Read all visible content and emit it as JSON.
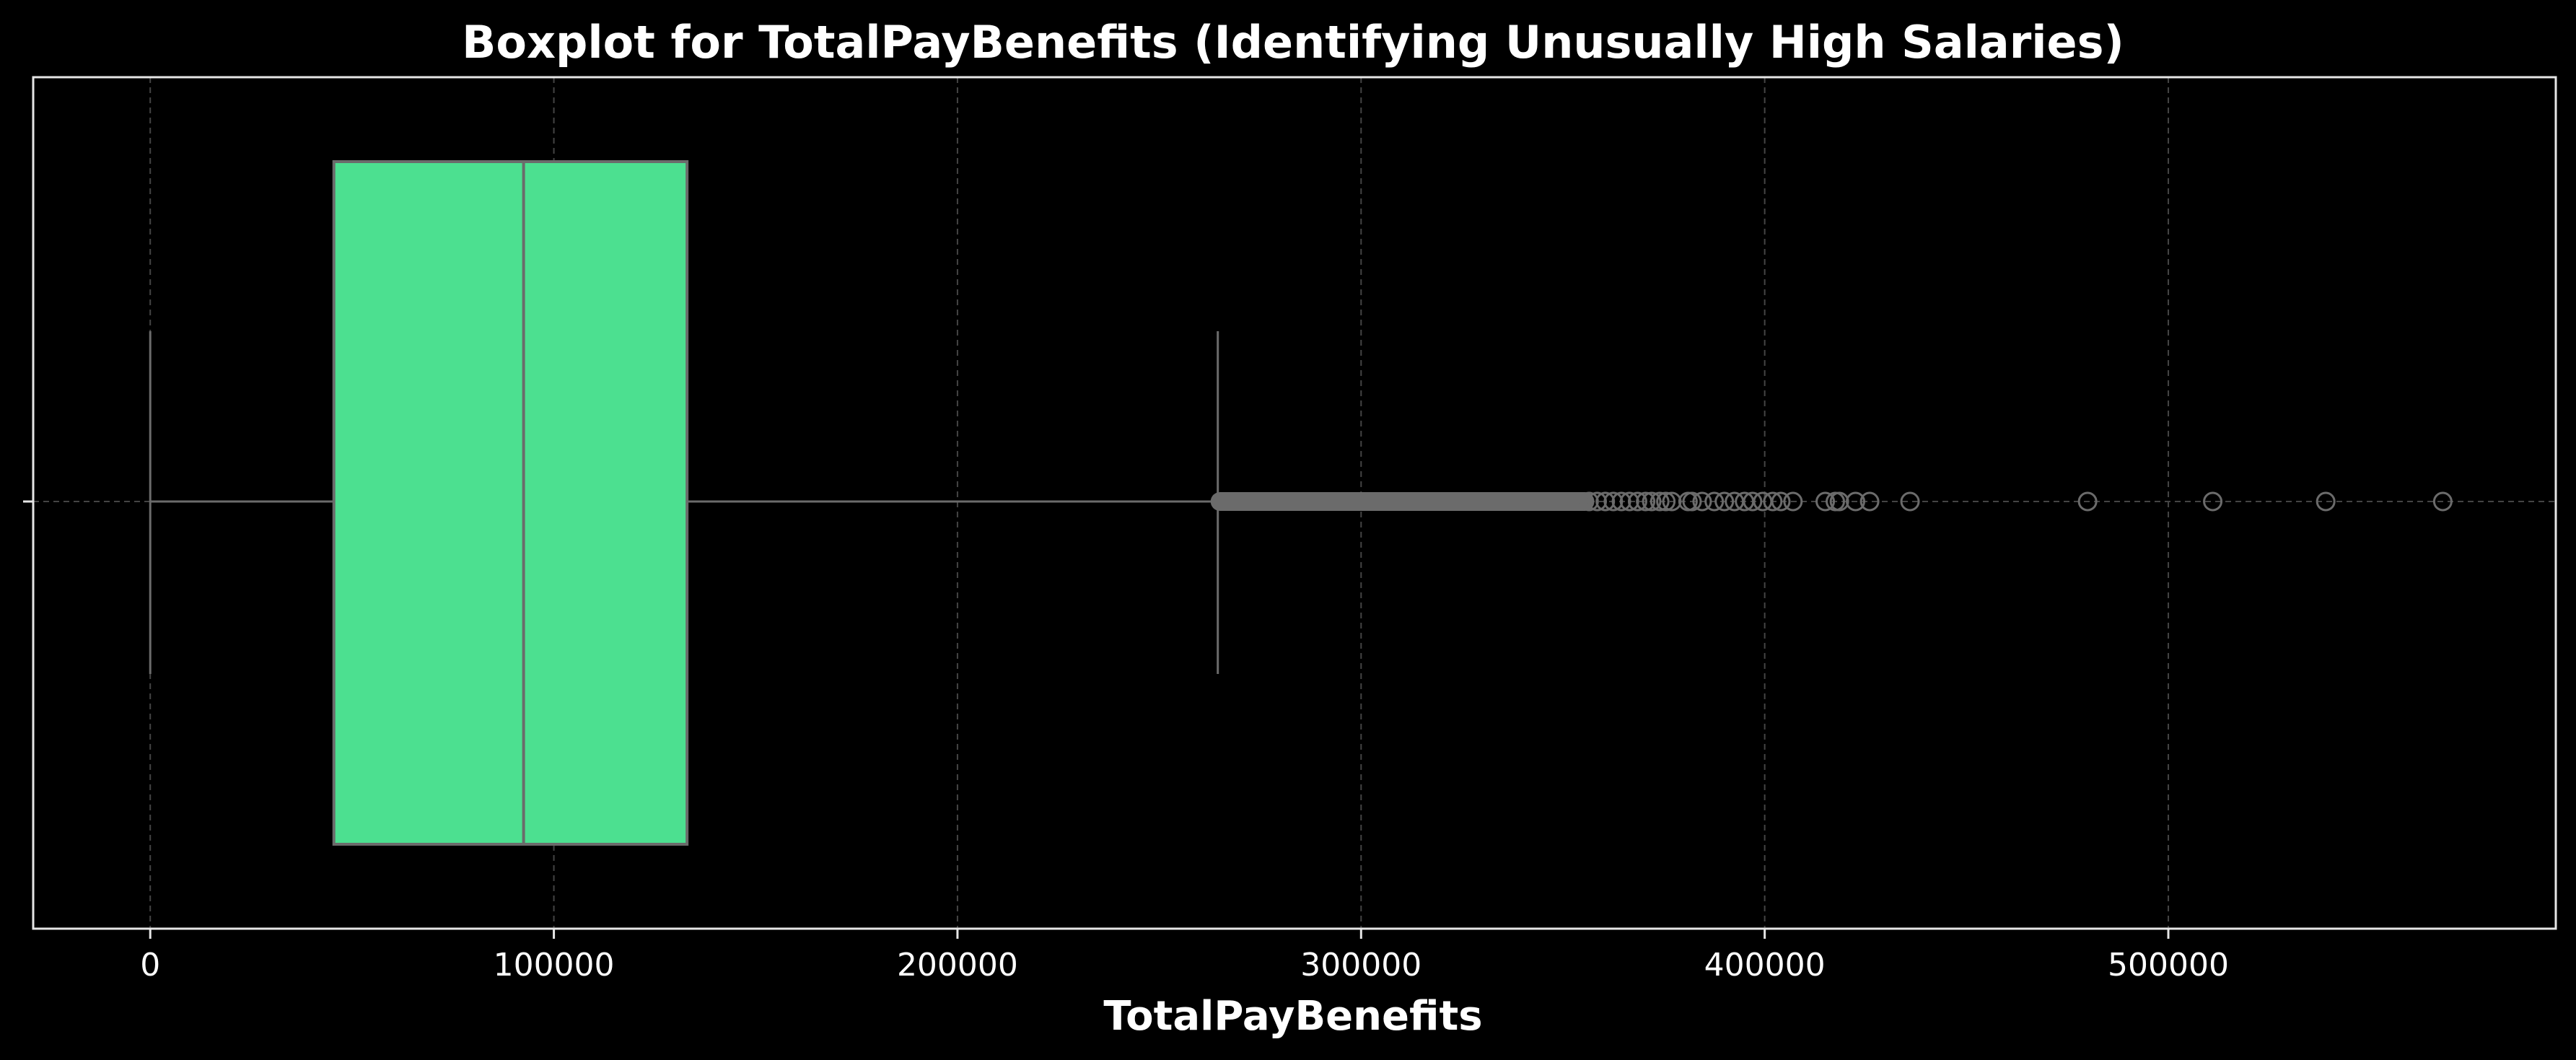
{
  "chart_data": {
    "type": "boxplot",
    "title": "Boxplot for TotalPayBenefits (Identifying Unusually High Salaries)",
    "xlabel": "TotalPayBenefits",
    "ylabel": "",
    "xlim": [
      -29000,
      596000
    ],
    "xticks": [
      0,
      100000,
      200000,
      300000,
      400000,
      500000
    ],
    "tick_labels": [
      "0",
      "100000",
      "200000",
      "300000",
      "400000",
      "500000"
    ],
    "grid": true,
    "box": {
      "whisker_low": 0,
      "q1": 45500,
      "median": 92500,
      "q3": 133000,
      "whisker_high": 264500
    },
    "outlier_band": [
      264500,
      356000
    ],
    "outliers": [
      356500,
      358500,
      360500,
      362500,
      364500,
      366500,
      368500,
      370500,
      372000,
      374000,
      375500,
      377000,
      381000,
      382000,
      384500,
      387500,
      390000,
      392500,
      395000,
      397000,
      399500,
      402000,
      404000,
      407000,
      415000,
      417500,
      418500,
      422500,
      426000,
      436000,
      480000,
      511000,
      539000,
      568000
    ],
    "colors": {
      "background": "#000000",
      "box_fill": "#4ce090",
      "lines": "#6b6b6b",
      "grid": "#444444",
      "text": "#ffffff",
      "frame": "#e6e6e6"
    }
  }
}
